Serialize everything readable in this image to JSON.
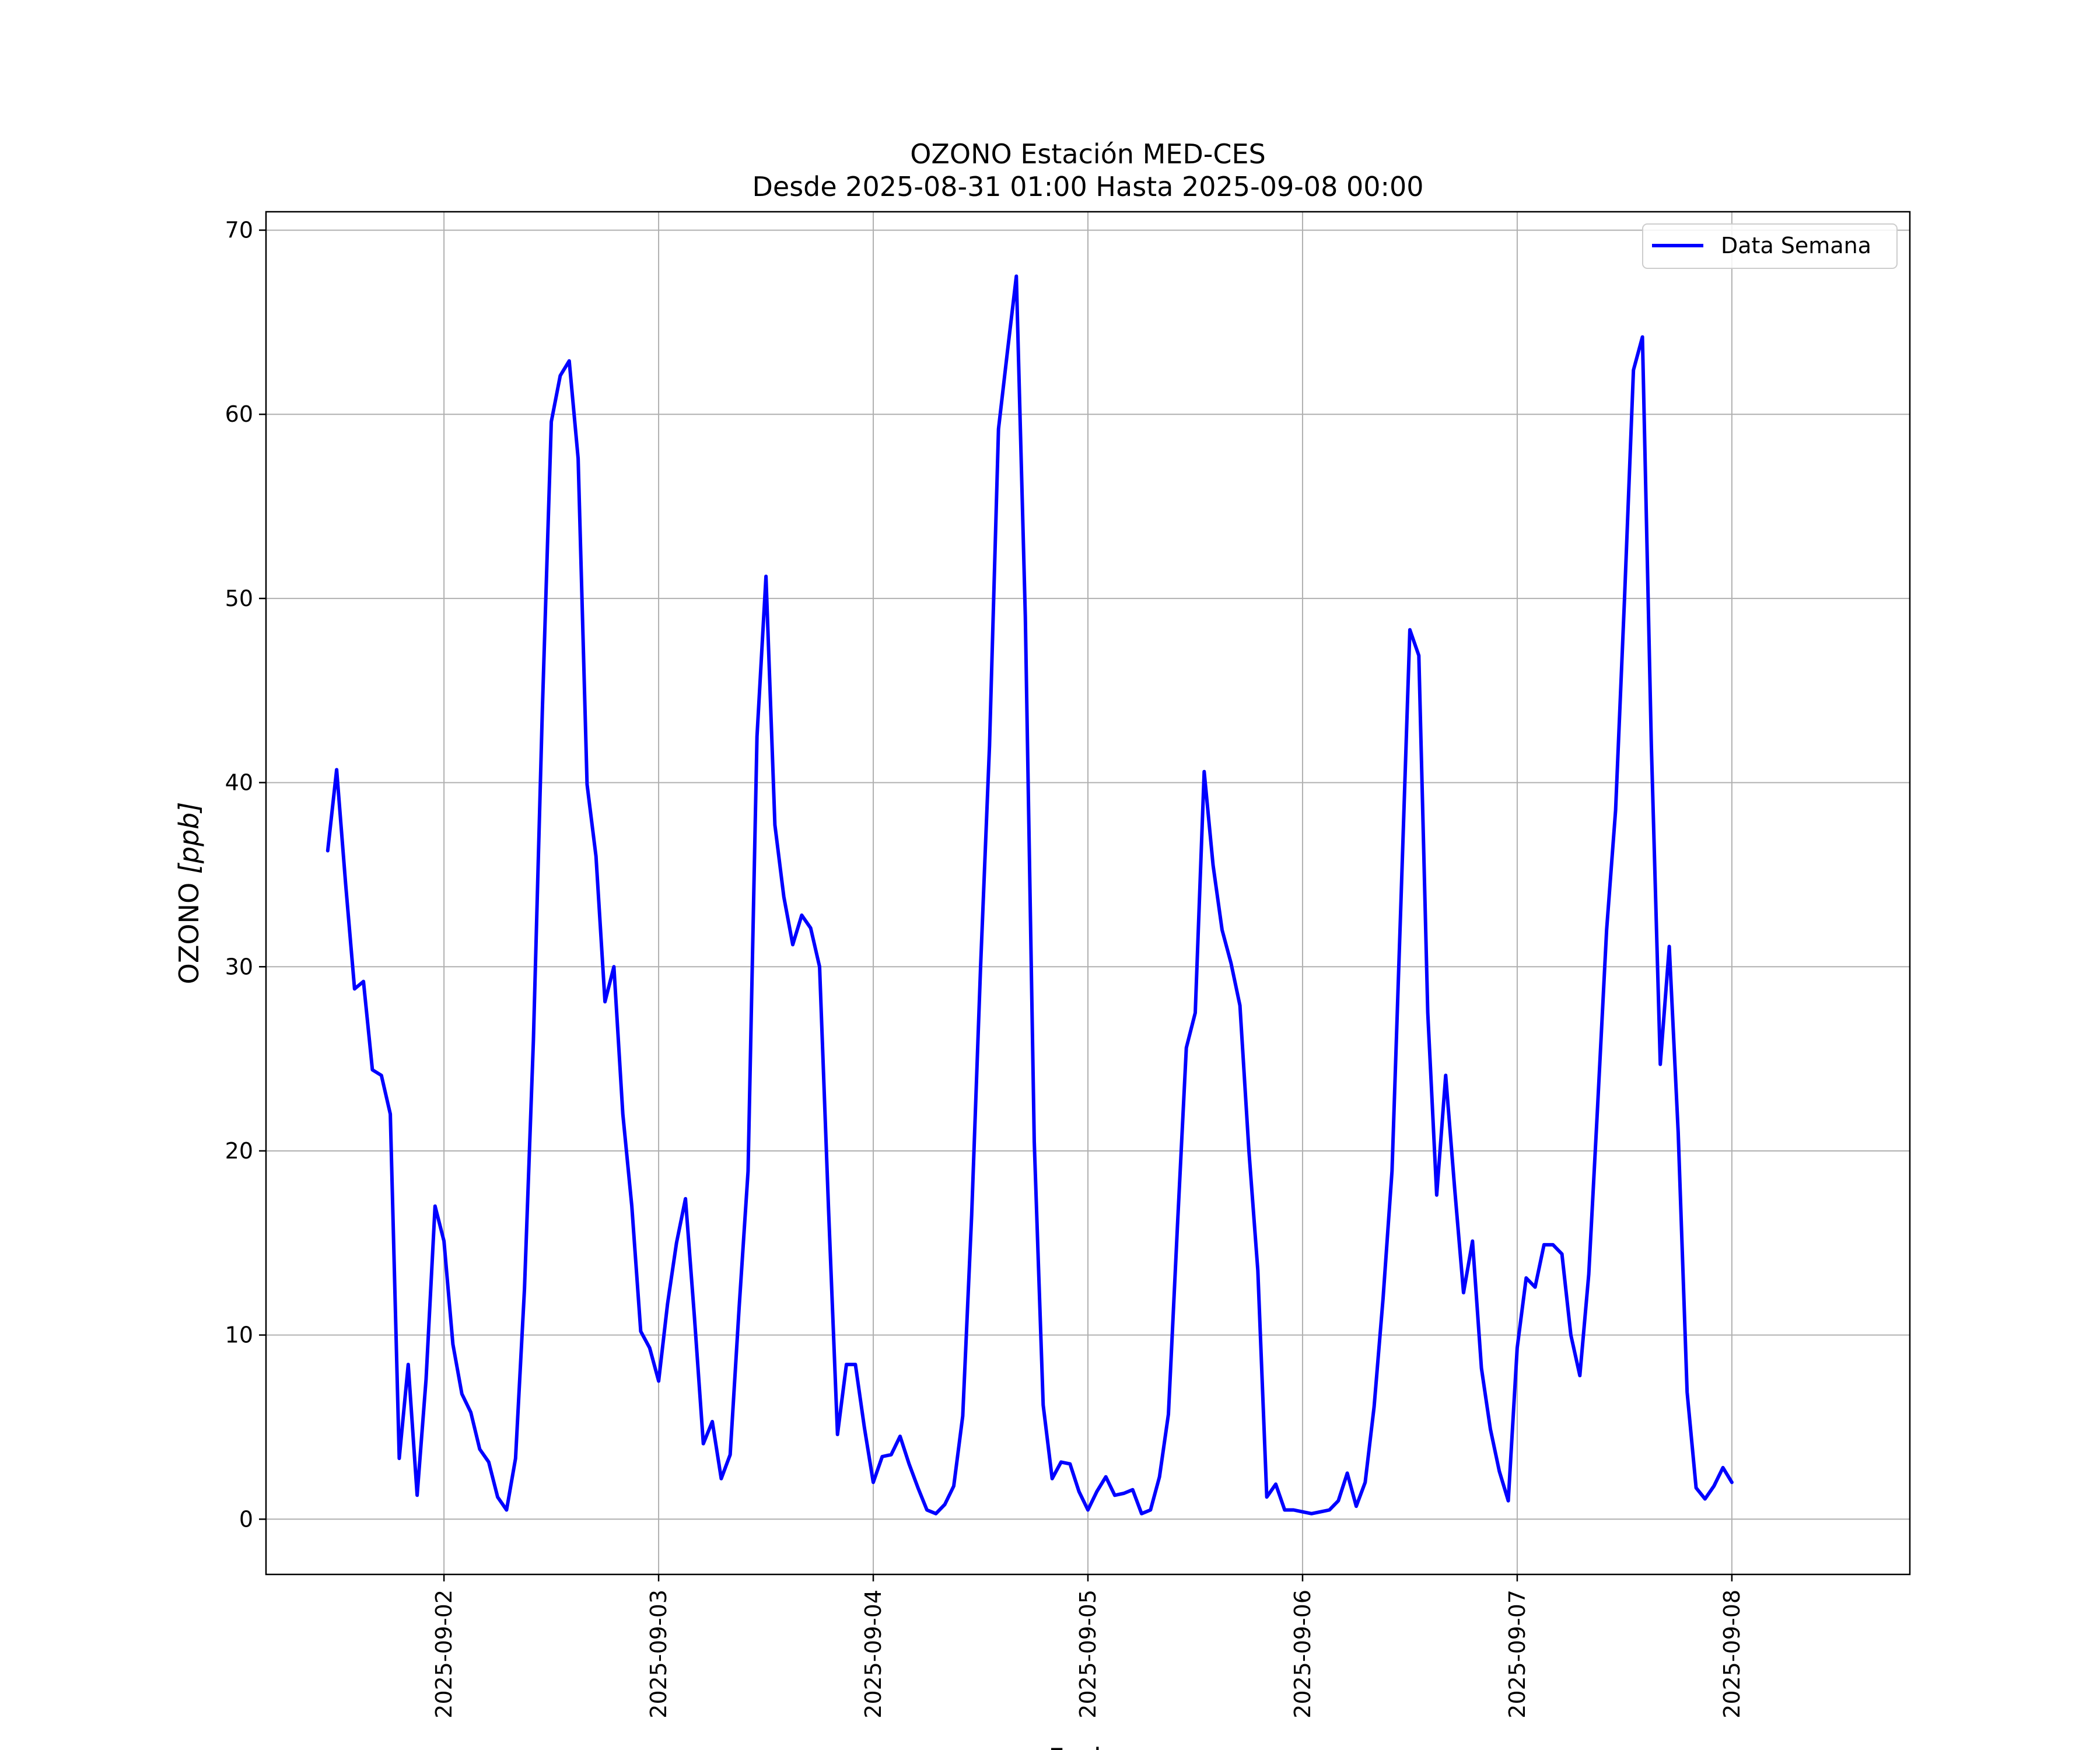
{
  "chart_data": {
    "type": "line",
    "title": "OZONO Estación MED-CES",
    "subtitle": "Desde 2025-08-31 01:00 Hasta 2025-09-08 00:00",
    "xlabel": "Fecha",
    "ylabel_text": "OZONO ",
    "ylabel_unit": "[ppb]",
    "xlim": [
      "2025-09-01 04:06",
      "2025-09-08 19:54"
    ],
    "ylim": [
      -3,
      71
    ],
    "x_ticks": [
      "2025-09-02",
      "2025-09-03",
      "2025-09-04",
      "2025-09-05",
      "2025-09-06",
      "2025-09-07",
      "2025-09-08"
    ],
    "y_ticks": [
      0,
      10,
      20,
      30,
      40,
      50,
      60,
      70
    ],
    "grid": true,
    "legend_position": "top-right",
    "series": [
      {
        "name": "Data Semana",
        "color": "#0000ff",
        "start": "2025-09-01 11:00",
        "step_hours": 1,
        "values": [
          36.3,
          40.7,
          34.5,
          28.8,
          29.2,
          24.4,
          24.1,
          22.0,
          3.3,
          8.4,
          1.3,
          7.6,
          17.0,
          15.1,
          9.5,
          6.8,
          5.8,
          3.8,
          3.1,
          1.2,
          0.5,
          3.3,
          12.5,
          26.0,
          44.0,
          59.6,
          62.1,
          62.9,
          57.6,
          39.9,
          36.0,
          28.1,
          30.0,
          22.0,
          17.0,
          10.2,
          9.3,
          7.5,
          11.7,
          15.0,
          17.4,
          11.0,
          4.1,
          5.3,
          2.2,
          3.5,
          11.5,
          18.9,
          42.5,
          51.2,
          37.7,
          33.8,
          31.2,
          32.8,
          32.1,
          30.0,
          16.8,
          4.6,
          8.4,
          8.4,
          5.0,
          2.0,
          3.4,
          3.5,
          4.5,
          3.0,
          1.7,
          0.5,
          0.3,
          0.8,
          1.8,
          5.6,
          16.5,
          30.0,
          42.0,
          59.2,
          63.4,
          67.5,
          49.0,
          20.5,
          6.2,
          2.2,
          3.1,
          3.0,
          1.5,
          0.5,
          1.5,
          2.3,
          1.3,
          1.4,
          1.6,
          0.3,
          0.5,
          2.3,
          5.7,
          15.8,
          25.6,
          27.5,
          40.6,
          35.5,
          32.0,
          30.2,
          27.9,
          20.0,
          13.5,
          1.2,
          1.9,
          0.5,
          0.5,
          0.4,
          0.3,
          0.4,
          0.5,
          1.0,
          2.5,
          0.7,
          2.0,
          6.1,
          12.0,
          18.9,
          33.5,
          48.3,
          46.9,
          27.5,
          17.6,
          24.1,
          18.0,
          12.3,
          15.1,
          8.2,
          4.9,
          2.6,
          1.0,
          9.3,
          13.1,
          12.6,
          14.9,
          14.9,
          14.4,
          10.0,
          7.8,
          13.3,
          22.5,
          32.0,
          38.5,
          50.0,
          62.4,
          64.2,
          42.0,
          24.7,
          31.1,
          21.0,
          6.9,
          1.7,
          1.1,
          1.8,
          2.8,
          2.0
        ]
      }
    ]
  }
}
